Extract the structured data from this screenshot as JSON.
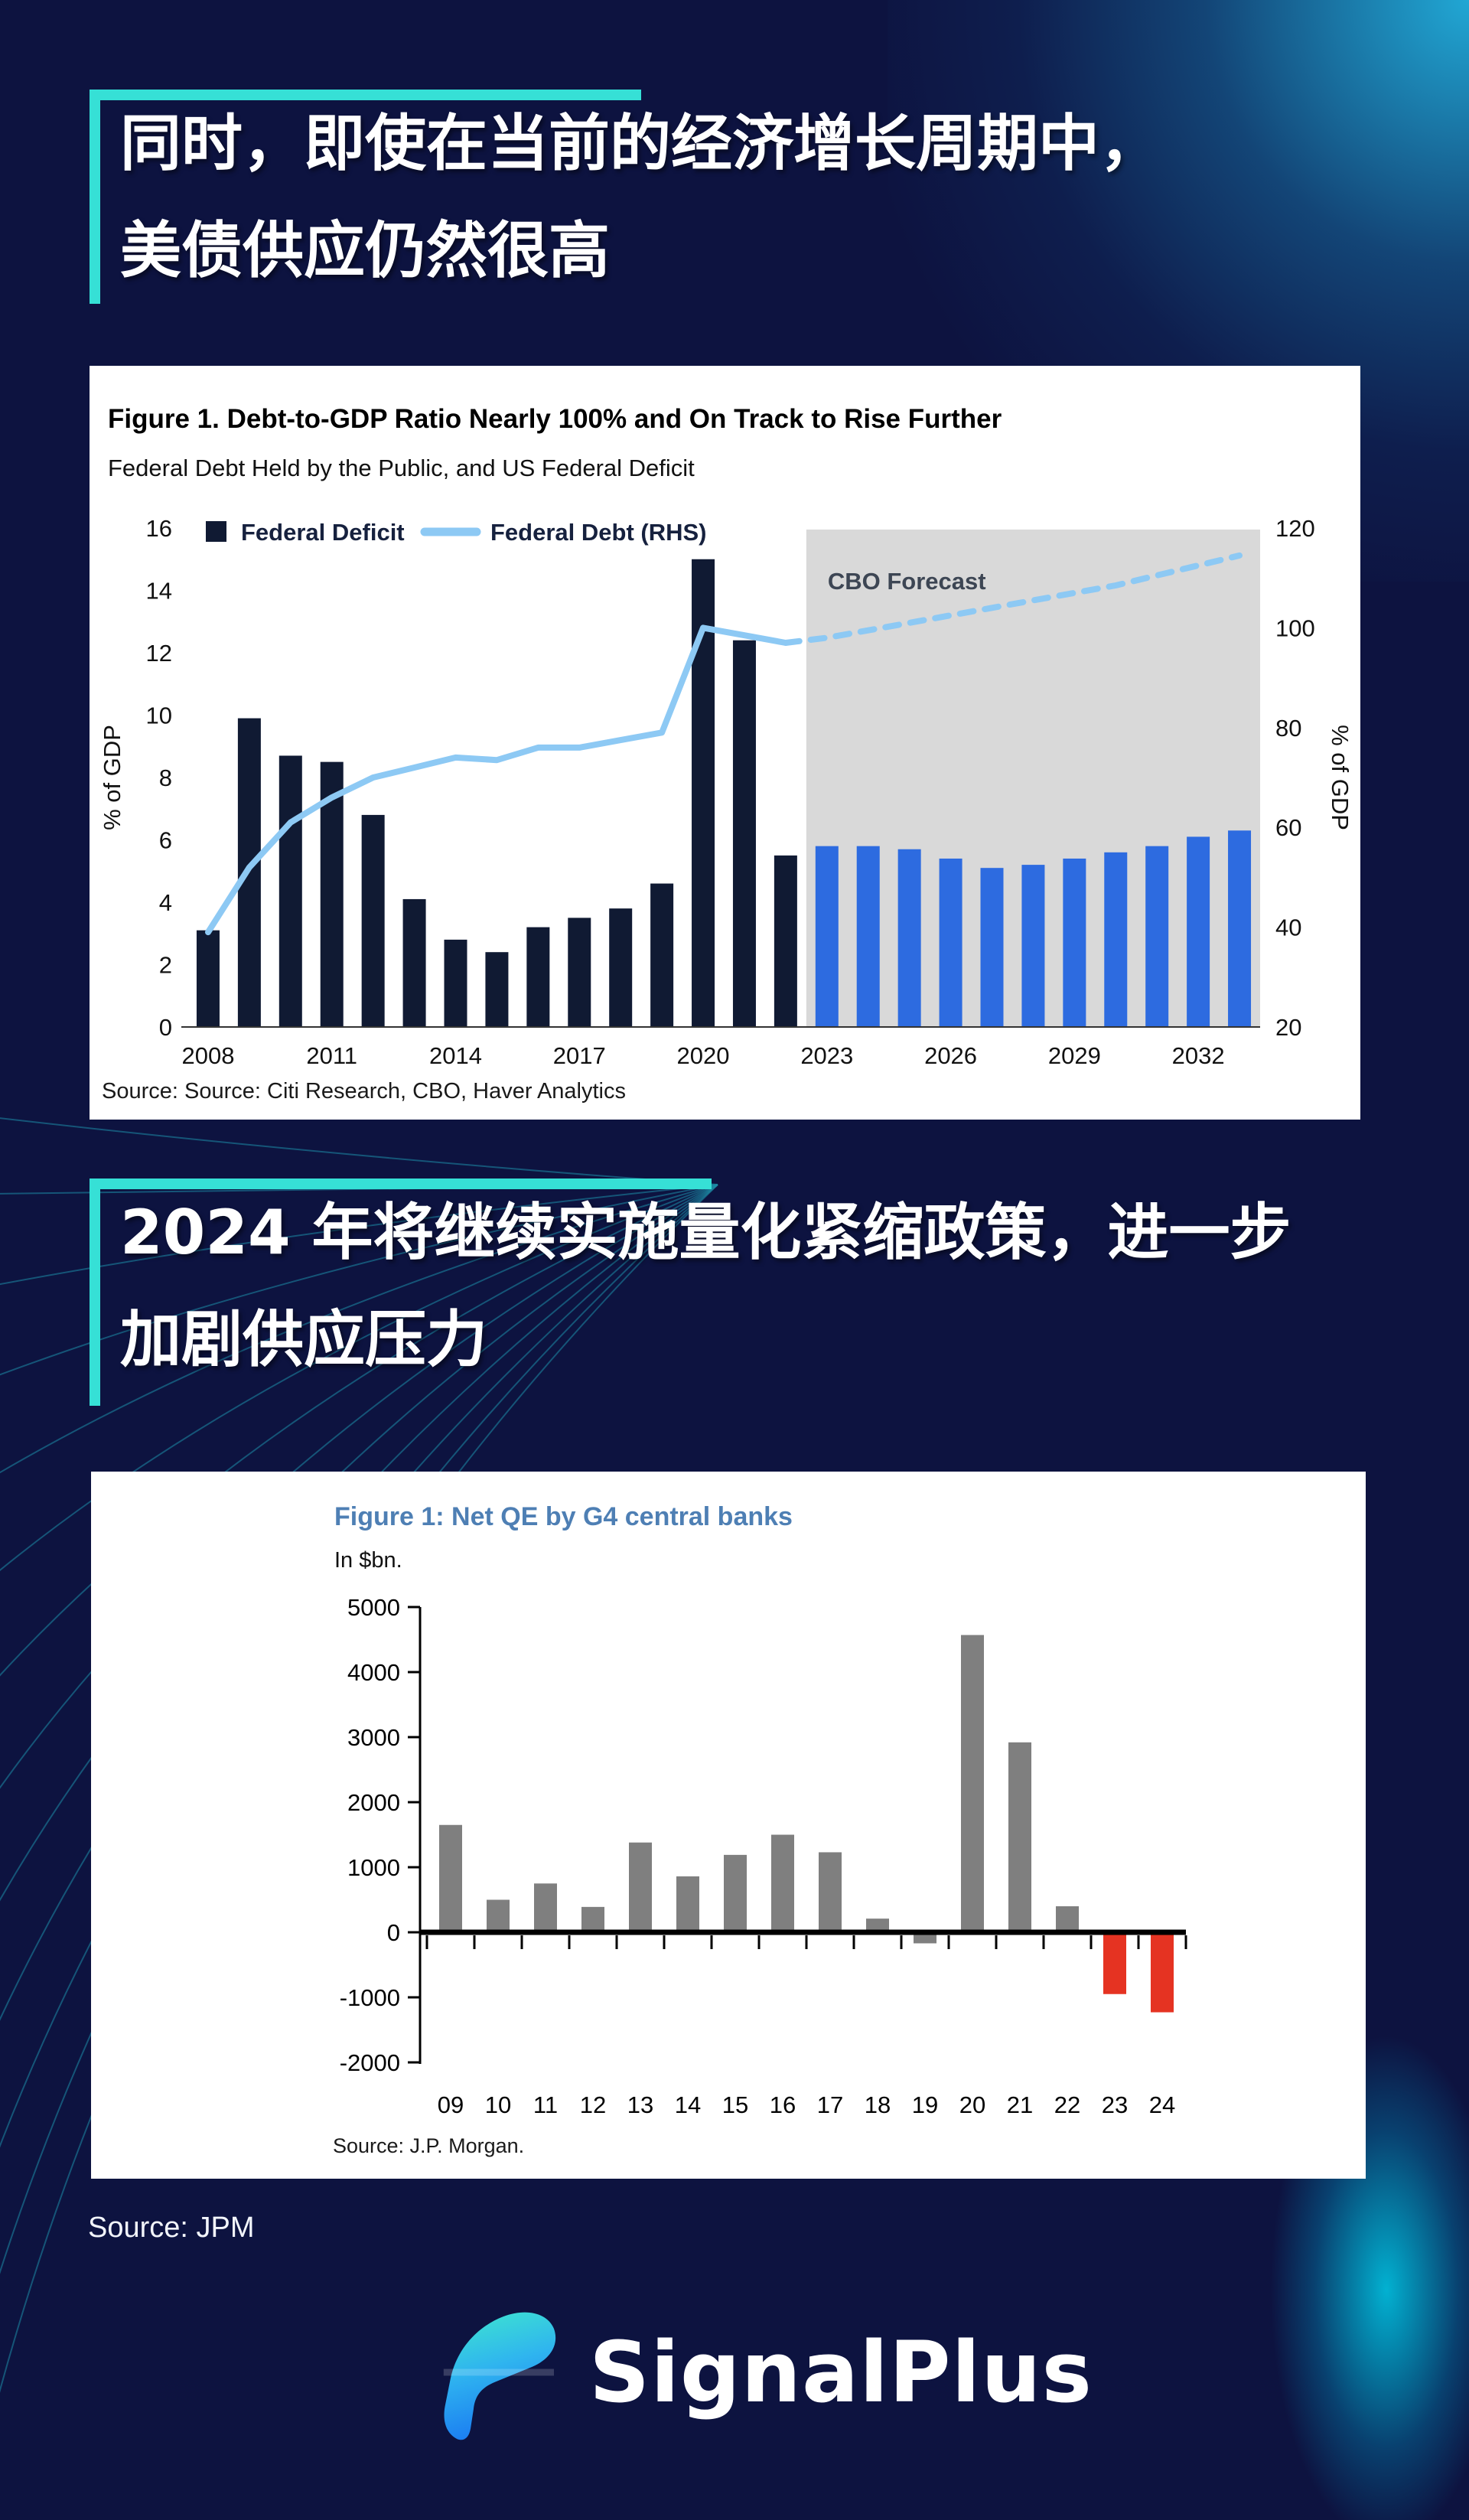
{
  "page": {
    "background_color": "#0d1340",
    "accent_color": "#36e0d6"
  },
  "headline1": {
    "line1": "同时，即使在当前的经济增长周期中，",
    "line2": "美债供应仍然很高"
  },
  "headline2": {
    "line1": "2024 年将继续实施量化紧缩政策，进一步",
    "line2": "加剧供应压力"
  },
  "source_note": "Source: JPM",
  "logo": {
    "text": "SignalPlus"
  },
  "chart_data": [
    {
      "type": "bar+line",
      "title": "Figure 1. Debt-to-GDP Ratio Nearly 100% and On Track to Rise Further",
      "subtitle": "Federal Debt Held by the Public, and US Federal Deficit",
      "source": "Source: Source: Citi Research, CBO, Haver Analytics",
      "ylabel_left": "% of GDP",
      "ylabel_right": "% of GDP",
      "ylim_left": [
        0,
        16
      ],
      "ytick_step_left": 2,
      "ylim_right": [
        20,
        120
      ],
      "ytick_step_right": 20,
      "grid": false,
      "legend_position": "top-left",
      "legend": [
        {
          "label": "Federal Deficit",
          "marker": "square",
          "color": "#101a33"
        },
        {
          "label": "Federal Debt (RHS)",
          "marker": "line",
          "color": "#8dc9f4"
        }
      ],
      "forecast_label": "CBO Forecast",
      "forecast_start_year": 2023,
      "forecast_region_color": "#d9d9d9",
      "bar_color_history": "#101a33",
      "bar_color_forecast": "#2d6be0",
      "line_color": "#8dc9f4",
      "years": [
        2008,
        2009,
        2010,
        2011,
        2012,
        2013,
        2014,
        2015,
        2016,
        2017,
        2018,
        2019,
        2020,
        2021,
        2022,
        2023,
        2024,
        2025,
        2026,
        2027,
        2028,
        2029,
        2030,
        2031,
        2032,
        2033
      ],
      "xtick_labels": [
        "2008",
        "2011",
        "2014",
        "2017",
        "2020",
        "2023",
        "2026",
        "2029",
        "2032"
      ],
      "series": [
        {
          "name": "Federal Deficit",
          "axis": "left",
          "values": [
            3.1,
            9.9,
            8.7,
            8.5,
            6.8,
            4.1,
            2.8,
            2.4,
            3.2,
            3.5,
            3.8,
            4.6,
            15.0,
            12.4,
            5.5,
            5.8,
            5.8,
            5.7,
            5.4,
            5.1,
            5.2,
            5.4,
            5.6,
            5.8,
            6.1,
            6.3
          ]
        },
        {
          "name": "Federal Debt (RHS)",
          "axis": "right",
          "values": [
            39,
            52,
            61,
            66,
            70,
            72,
            74,
            73.5,
            76,
            76,
            77.5,
            79,
            100,
            98.5,
            97,
            98,
            99.5,
            101,
            102.5,
            104,
            105.5,
            107,
            108.5,
            110.5,
            112.5,
            114.5
          ]
        }
      ]
    },
    {
      "type": "bar",
      "title": "Figure 1: Net QE by G4 central banks",
      "subtitle": "In $bn.",
      "source": "Source: J.P. Morgan.",
      "ylim": [
        -2000,
        5000
      ],
      "ytick_step": 1000,
      "grid": false,
      "categories": [
        "09",
        "10",
        "11",
        "12",
        "13",
        "14",
        "15",
        "16",
        "17",
        "18",
        "19",
        "20",
        "21",
        "22",
        "23",
        "24"
      ],
      "values": [
        1650,
        500,
        750,
        390,
        1380,
        860,
        1190,
        1500,
        1230,
        210,
        -170,
        4570,
        2920,
        400,
        -950,
        -1230
      ],
      "bar_color": "#7f7f7f",
      "highlight_color": "#e53322",
      "highlight_categories": [
        "23",
        "24"
      ]
    }
  ]
}
